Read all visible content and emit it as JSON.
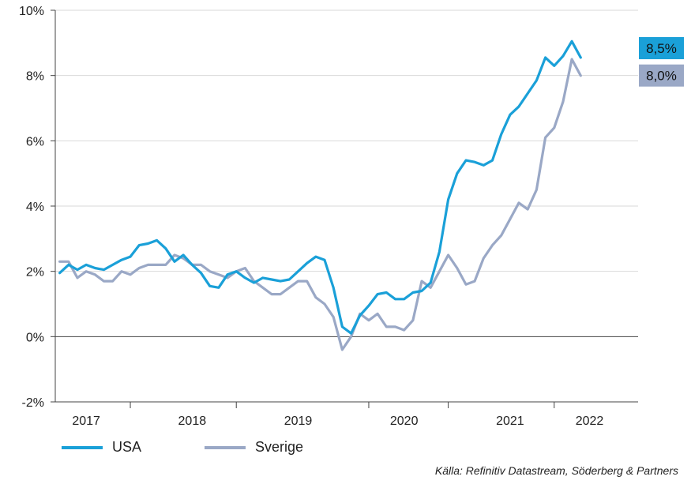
{
  "chart_data": {
    "type": "line",
    "title": "",
    "xlabel": "",
    "ylabel": "",
    "ylim": [
      -2,
      10
    ],
    "y_ticks": [
      "-2%",
      "0%",
      "2%",
      "4%",
      "6%",
      "8%",
      "10%"
    ],
    "y_tick_values": [
      -2,
      0,
      2,
      4,
      6,
      8,
      10
    ],
    "x_tick_labels": [
      "2017",
      "2018",
      "2019",
      "2020",
      "2021",
      "2022"
    ],
    "x_tick_positions": [
      "2017-04",
      "2018-04",
      "2019-04",
      "2020-04",
      "2021-04",
      "2022-01"
    ],
    "x_dividers": [
      "2017-09",
      "2018-09",
      "2019-12",
      "2020-09",
      "2021-09"
    ],
    "xlim": [
      "2017-01",
      "2022-06"
    ],
    "grid": "horizontal",
    "end_labels": [
      {
        "series": "USA",
        "text": "8,5%",
        "color": "#1aa0d8"
      },
      {
        "series": "Sverige",
        "text": "8,0%",
        "color": "#9aa8c6"
      }
    ],
    "series": [
      {
        "name": "USA",
        "color": "#1aa0d8",
        "points": [
          [
            "2017-01",
            1.95
          ],
          [
            "2017-02",
            2.2
          ],
          [
            "2017-03",
            2.05
          ],
          [
            "2017-04",
            2.2
          ],
          [
            "2017-05",
            2.1
          ],
          [
            "2017-06",
            2.05
          ],
          [
            "2017-07",
            2.2
          ],
          [
            "2017-08",
            2.35
          ],
          [
            "2017-09",
            2.45
          ],
          [
            "2017-10",
            2.8
          ],
          [
            "2017-11",
            2.85
          ],
          [
            "2017-12",
            2.95
          ],
          [
            "2018-01",
            2.7
          ],
          [
            "2018-02",
            2.3
          ],
          [
            "2018-03",
            2.5
          ],
          [
            "2018-04",
            2.2
          ],
          [
            "2018-05",
            1.95
          ],
          [
            "2018-06",
            1.55
          ],
          [
            "2018-07",
            1.5
          ],
          [
            "2018-08",
            1.9
          ],
          [
            "2018-09",
            2.0
          ],
          [
            "2018-10",
            1.8
          ],
          [
            "2018-11",
            1.65
          ],
          [
            "2018-12",
            1.8
          ],
          [
            "2019-01",
            1.75
          ],
          [
            "2019-02",
            1.7
          ],
          [
            "2019-03",
            1.75
          ],
          [
            "2019-04",
            2.0
          ],
          [
            "2019-05",
            2.25
          ],
          [
            "2019-06",
            2.45
          ],
          [
            "2019-07",
            2.35
          ],
          [
            "2019-08",
            1.5
          ],
          [
            "2019-09",
            0.3
          ],
          [
            "2019-10",
            0.1
          ],
          [
            "2019-11",
            0.65
          ],
          [
            "2019-12",
            0.95
          ],
          [
            "2020-01",
            1.3
          ],
          [
            "2020-02",
            1.35
          ],
          [
            "2020-03",
            1.15
          ],
          [
            "2020-04",
            1.15
          ],
          [
            "2020-05",
            1.35
          ],
          [
            "2020-06",
            1.4
          ],
          [
            "2020-07",
            1.65
          ],
          [
            "2020-08",
            2.6
          ],
          [
            "2020-09",
            4.2
          ],
          [
            "2020-10",
            5.0
          ],
          [
            "2020-11",
            5.4
          ],
          [
            "2020-12",
            5.35
          ],
          [
            "2021-01",
            5.25
          ],
          [
            "2021-02",
            5.4
          ],
          [
            "2021-03",
            6.2
          ],
          [
            "2021-04",
            6.8
          ],
          [
            "2021-05",
            7.05
          ],
          [
            "2021-06",
            7.45
          ],
          [
            "2021-07",
            7.85
          ],
          [
            "2021-08",
            8.55
          ],
          [
            "2021-09",
            8.3
          ],
          [
            "2021-10",
            8.6
          ],
          [
            "2021-11",
            9.05
          ],
          [
            "2021-12",
            8.55
          ]
        ]
      },
      {
        "name": "Sverige",
        "color": "#9aa8c6",
        "points": [
          [
            "2017-01",
            2.3
          ],
          [
            "2017-02",
            2.3
          ],
          [
            "2017-03",
            1.8
          ],
          [
            "2017-04",
            2.0
          ],
          [
            "2017-05",
            1.9
          ],
          [
            "2017-06",
            1.7
          ],
          [
            "2017-07",
            1.7
          ],
          [
            "2017-08",
            2.0
          ],
          [
            "2017-09",
            1.9
          ],
          [
            "2017-10",
            2.1
          ],
          [
            "2017-11",
            2.2
          ],
          [
            "2017-12",
            2.2
          ],
          [
            "2018-01",
            2.2
          ],
          [
            "2018-02",
            2.5
          ],
          [
            "2018-03",
            2.4
          ],
          [
            "2018-04",
            2.2
          ],
          [
            "2018-05",
            2.2
          ],
          [
            "2018-06",
            2.0
          ],
          [
            "2018-07",
            1.9
          ],
          [
            "2018-08",
            1.8
          ],
          [
            "2018-09",
            2.0
          ],
          [
            "2018-10",
            2.1
          ],
          [
            "2018-11",
            1.7
          ],
          [
            "2018-12",
            1.5
          ],
          [
            "2019-01",
            1.3
          ],
          [
            "2019-02",
            1.3
          ],
          [
            "2019-03",
            1.5
          ],
          [
            "2019-04",
            1.7
          ],
          [
            "2019-05",
            1.7
          ],
          [
            "2019-06",
            1.2
          ],
          [
            "2019-07",
            1.0
          ],
          [
            "2019-08",
            0.6
          ],
          [
            "2019-09",
            -0.4
          ],
          [
            "2019-10",
            0.0
          ],
          [
            "2019-11",
            0.7
          ],
          [
            "2019-12",
            0.5
          ],
          [
            "2020-01",
            0.7
          ],
          [
            "2020-02",
            0.3
          ],
          [
            "2020-03",
            0.3
          ],
          [
            "2020-04",
            0.2
          ],
          [
            "2020-05",
            0.5
          ],
          [
            "2020-06",
            1.7
          ],
          [
            "2020-07",
            1.5
          ],
          [
            "2020-08",
            2.0
          ],
          [
            "2020-09",
            2.5
          ],
          [
            "2020-10",
            2.1
          ],
          [
            "2020-11",
            1.6
          ],
          [
            "2020-12",
            1.7
          ],
          [
            "2021-01",
            2.4
          ],
          [
            "2021-02",
            2.8
          ],
          [
            "2021-03",
            3.1
          ],
          [
            "2021-04",
            3.6
          ],
          [
            "2021-05",
            4.1
          ],
          [
            "2021-06",
            3.9
          ],
          [
            "2021-07",
            4.5
          ],
          [
            "2021-08",
            6.1
          ],
          [
            "2021-09",
            6.4
          ],
          [
            "2021-10",
            7.2
          ],
          [
            "2021-11",
            8.5
          ],
          [
            "2021-12",
            8.0
          ]
        ]
      }
    ]
  },
  "legend": {
    "items": [
      {
        "label": "USA",
        "color": "#1aa0d8"
      },
      {
        "label": "Sverige",
        "color": "#9aa8c6"
      }
    ]
  },
  "source": "Källa: Refinitiv Datastream, Söderberg & Partners"
}
